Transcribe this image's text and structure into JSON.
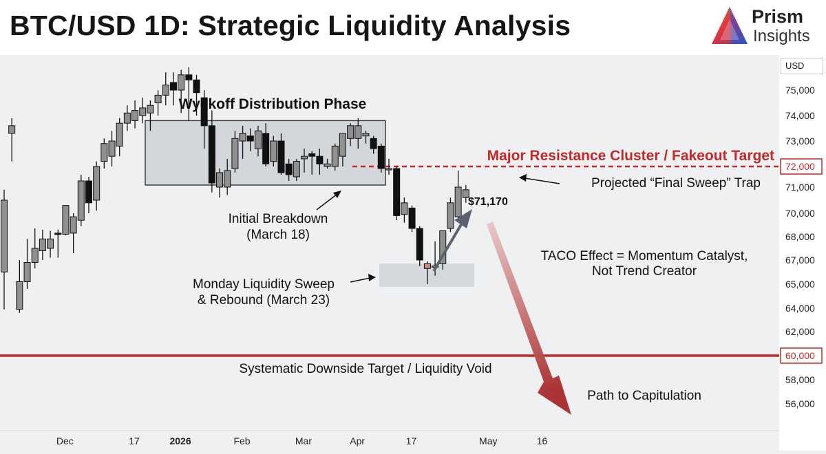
{
  "header": {
    "title": "BTC/USD 1D: Strategic Liquidity Analysis",
    "brand_line1": "Prism",
    "brand_line2": "Insights"
  },
  "axis": {
    "currency_label": "USD"
  },
  "chart_data": {
    "type": "candlestick",
    "title": "BTC/USD 1D: Strategic Liquidity Analysis",
    "y_ticks": [
      {
        "label": "75,000",
        "value": 75000
      },
      {
        "label": "74,000",
        "value": 74000
      },
      {
        "label": "73,000",
        "value": 73000
      },
      {
        "label": "71,000",
        "value": 71000
      },
      {
        "label": "70,000",
        "value": 70000
      },
      {
        "label": "68,000",
        "value": 68000
      },
      {
        "label": "67,000",
        "value": 67000
      },
      {
        "label": "65,000",
        "value": 65000
      },
      {
        "label": "64,000",
        "value": 64000
      },
      {
        "label": "62,000",
        "value": 62000
      },
      {
        "label": "58,000",
        "value": 58000
      },
      {
        "label": "56,000",
        "value": 56000
      }
    ],
    "highlighted_levels": [
      {
        "label": "72,000",
        "value": 72000,
        "style": "dashed",
        "color": "#c62828"
      },
      {
        "label": "60,000",
        "value": 60000,
        "style": "solid",
        "color": "#c62828"
      }
    ],
    "x_ticks": [
      {
        "label": "Dec",
        "pos": 2
      },
      {
        "label": "17",
        "pos": 11
      },
      {
        "label": "2026",
        "pos": 17,
        "bold": true
      },
      {
        "label": "Feb",
        "pos": 25
      },
      {
        "label": "Mar",
        "pos": 33
      },
      {
        "label": "Apr",
        "pos": 40
      },
      {
        "label": "17",
        "pos": 47
      },
      {
        "label": "May",
        "pos": 57
      },
      {
        "label": "16",
        "pos": 64
      }
    ],
    "candles": [
      {
        "o": 66000,
        "h": 70900,
        "l": 63900,
        "c": 70500
      },
      {
        "o": 73300,
        "h": 73900,
        "l": 72200,
        "c": 73600
      },
      {
        "o": 63900,
        "h": 67000,
        "l": 63600,
        "c": 65200
      },
      {
        "o": 65200,
        "h": 67900,
        "l": 64800,
        "c": 66800
      },
      {
        "o": 66800,
        "h": 68700,
        "l": 66300,
        "c": 67500
      },
      {
        "o": 67400,
        "h": 68600,
        "l": 67000,
        "c": 67900
      },
      {
        "o": 67500,
        "h": 68500,
        "l": 67100,
        "c": 67900
      },
      {
        "o": 68300,
        "h": 68600,
        "l": 67100,
        "c": 68200
      },
      {
        "o": 68200,
        "h": 70200,
        "l": 68100,
        "c": 70300
      },
      {
        "o": 68300,
        "h": 70000,
        "l": 67300,
        "c": 69700
      },
      {
        "o": 69400,
        "h": 71600,
        "l": 68900,
        "c": 71300
      },
      {
        "o": 71300,
        "h": 71500,
        "l": 70000,
        "c": 70400
      },
      {
        "o": 70500,
        "h": 72200,
        "l": 70100,
        "c": 72000
      },
      {
        "o": 72200,
        "h": 73100,
        "l": 71900,
        "c": 72900
      },
      {
        "o": 72400,
        "h": 73400,
        "l": 72000,
        "c": 73000
      },
      {
        "o": 72800,
        "h": 73900,
        "l": 72400,
        "c": 73700
      },
      {
        "o": 73700,
        "h": 74400,
        "l": 73400,
        "c": 74100
      },
      {
        "o": 73800,
        "h": 74600,
        "l": 73500,
        "c": 74200
      },
      {
        "o": 74000,
        "h": 74700,
        "l": 73700,
        "c": 74300
      },
      {
        "o": 74100,
        "h": 74600,
        "l": 73400,
        "c": 74400
      },
      {
        "o": 74500,
        "h": 75000,
        "l": 74000,
        "c": 74800
      },
      {
        "o": 74800,
        "h": 75700,
        "l": 74400,
        "c": 75200
      },
      {
        "o": 75300,
        "h": 75700,
        "l": 74400,
        "c": 75000
      },
      {
        "o": 75000,
        "h": 75800,
        "l": 74100,
        "c": 75600
      },
      {
        "o": 75600,
        "h": 75900,
        "l": 73800,
        "c": 75400
      },
      {
        "o": 75400,
        "h": 75600,
        "l": 74000,
        "c": 74900
      },
      {
        "o": 74700,
        "h": 75000,
        "l": 72700,
        "c": 73600
      },
      {
        "o": 73600,
        "h": 74200,
        "l": 70800,
        "c": 71200
      },
      {
        "o": 71000,
        "h": 71900,
        "l": 70600,
        "c": 71700
      },
      {
        "o": 71000,
        "h": 72300,
        "l": 70700,
        "c": 71800
      },
      {
        "o": 71900,
        "h": 73400,
        "l": 71700,
        "c": 73100
      },
      {
        "o": 73000,
        "h": 73600,
        "l": 72300,
        "c": 73300
      },
      {
        "o": 73200,
        "h": 73500,
        "l": 72600,
        "c": 73000
      },
      {
        "o": 72700,
        "h": 73600,
        "l": 72400,
        "c": 73400
      },
      {
        "o": 73300,
        "h": 73700,
        "l": 72000,
        "c": 72100
      },
      {
        "o": 72200,
        "h": 73200,
        "l": 72000,
        "c": 73000
      },
      {
        "o": 73000,
        "h": 73300,
        "l": 71600,
        "c": 71700
      },
      {
        "o": 72100,
        "h": 72300,
        "l": 71300,
        "c": 71600
      },
      {
        "o": 71500,
        "h": 72300,
        "l": 71300,
        "c": 72200
      },
      {
        "o": 72300,
        "h": 72700,
        "l": 71700,
        "c": 72400
      },
      {
        "o": 72500,
        "h": 72600,
        "l": 71600,
        "c": 72400
      },
      {
        "o": 72400,
        "h": 72700,
        "l": 71600,
        "c": 72100
      },
      {
        "o": 72000,
        "h": 72300,
        "l": 71900,
        "c": 72100
      },
      {
        "o": 72000,
        "h": 72900,
        "l": 71800,
        "c": 72800
      },
      {
        "o": 72400,
        "h": 73300,
        "l": 72000,
        "c": 73300
      },
      {
        "o": 73100,
        "h": 73700,
        "l": 72800,
        "c": 73600
      },
      {
        "o": 73100,
        "h": 73900,
        "l": 72700,
        "c": 73600
      },
      {
        "o": 73200,
        "h": 73400,
        "l": 72900,
        "c": 73300
      },
      {
        "o": 73100,
        "h": 73200,
        "l": 72500,
        "c": 72700
      },
      {
        "o": 72800,
        "h": 72900,
        "l": 71700,
        "c": 71900
      },
      {
        "o": 71900,
        "h": 72300,
        "l": 71600,
        "c": 71900
      },
      {
        "o": 71900,
        "h": 72000,
        "l": 69400,
        "c": 69800
      },
      {
        "o": 69900,
        "h": 70600,
        "l": 69200,
        "c": 70400
      },
      {
        "o": 70200,
        "h": 70300,
        "l": 68400,
        "c": 68700
      },
      {
        "o": 68700,
        "h": 68900,
        "l": 66500,
        "c": 67000
      },
      {
        "o": 66700,
        "h": 66900,
        "l": 65000,
        "c": 66300
      },
      {
        "o": 66400,
        "h": 67800,
        "l": 65700,
        "c": 66500
      },
      {
        "o": 66700,
        "h": 68500,
        "l": 66200,
        "c": 68500
      },
      {
        "o": 68700,
        "h": 70600,
        "l": 68400,
        "c": 70400
      },
      {
        "o": 69700,
        "h": 71800,
        "l": 69200,
        "c": 71000
      },
      {
        "o": 70600,
        "h": 71100,
        "l": 70400,
        "c": 70900
      }
    ],
    "annotations": {
      "wyckoff": "Wyckoff Distribution Phase",
      "resistance": "Major Resistance Cluster / Fakeout Target",
      "projected": "Projected “Final Sweep” Trap",
      "price_label": "$71,170",
      "breakdown_1": "Initial Breakdown",
      "breakdown_2": "(March 18)",
      "sweep_1": "Monday Liquidity Sweep",
      "sweep_2": "& Rebound (March 23)",
      "taco_1": "TACO Effect = Momentum Catalyst,",
      "taco_2": "Not Trend Creator",
      "downside": "Systematic Downside Target / Liquidity Void",
      "capitulation": "Path to Capitulation"
    },
    "colors": {
      "bull": "#909090",
      "bear": "#111111",
      "highlight_candle": "#c98b7c",
      "level_red": "#c62828"
    }
  }
}
